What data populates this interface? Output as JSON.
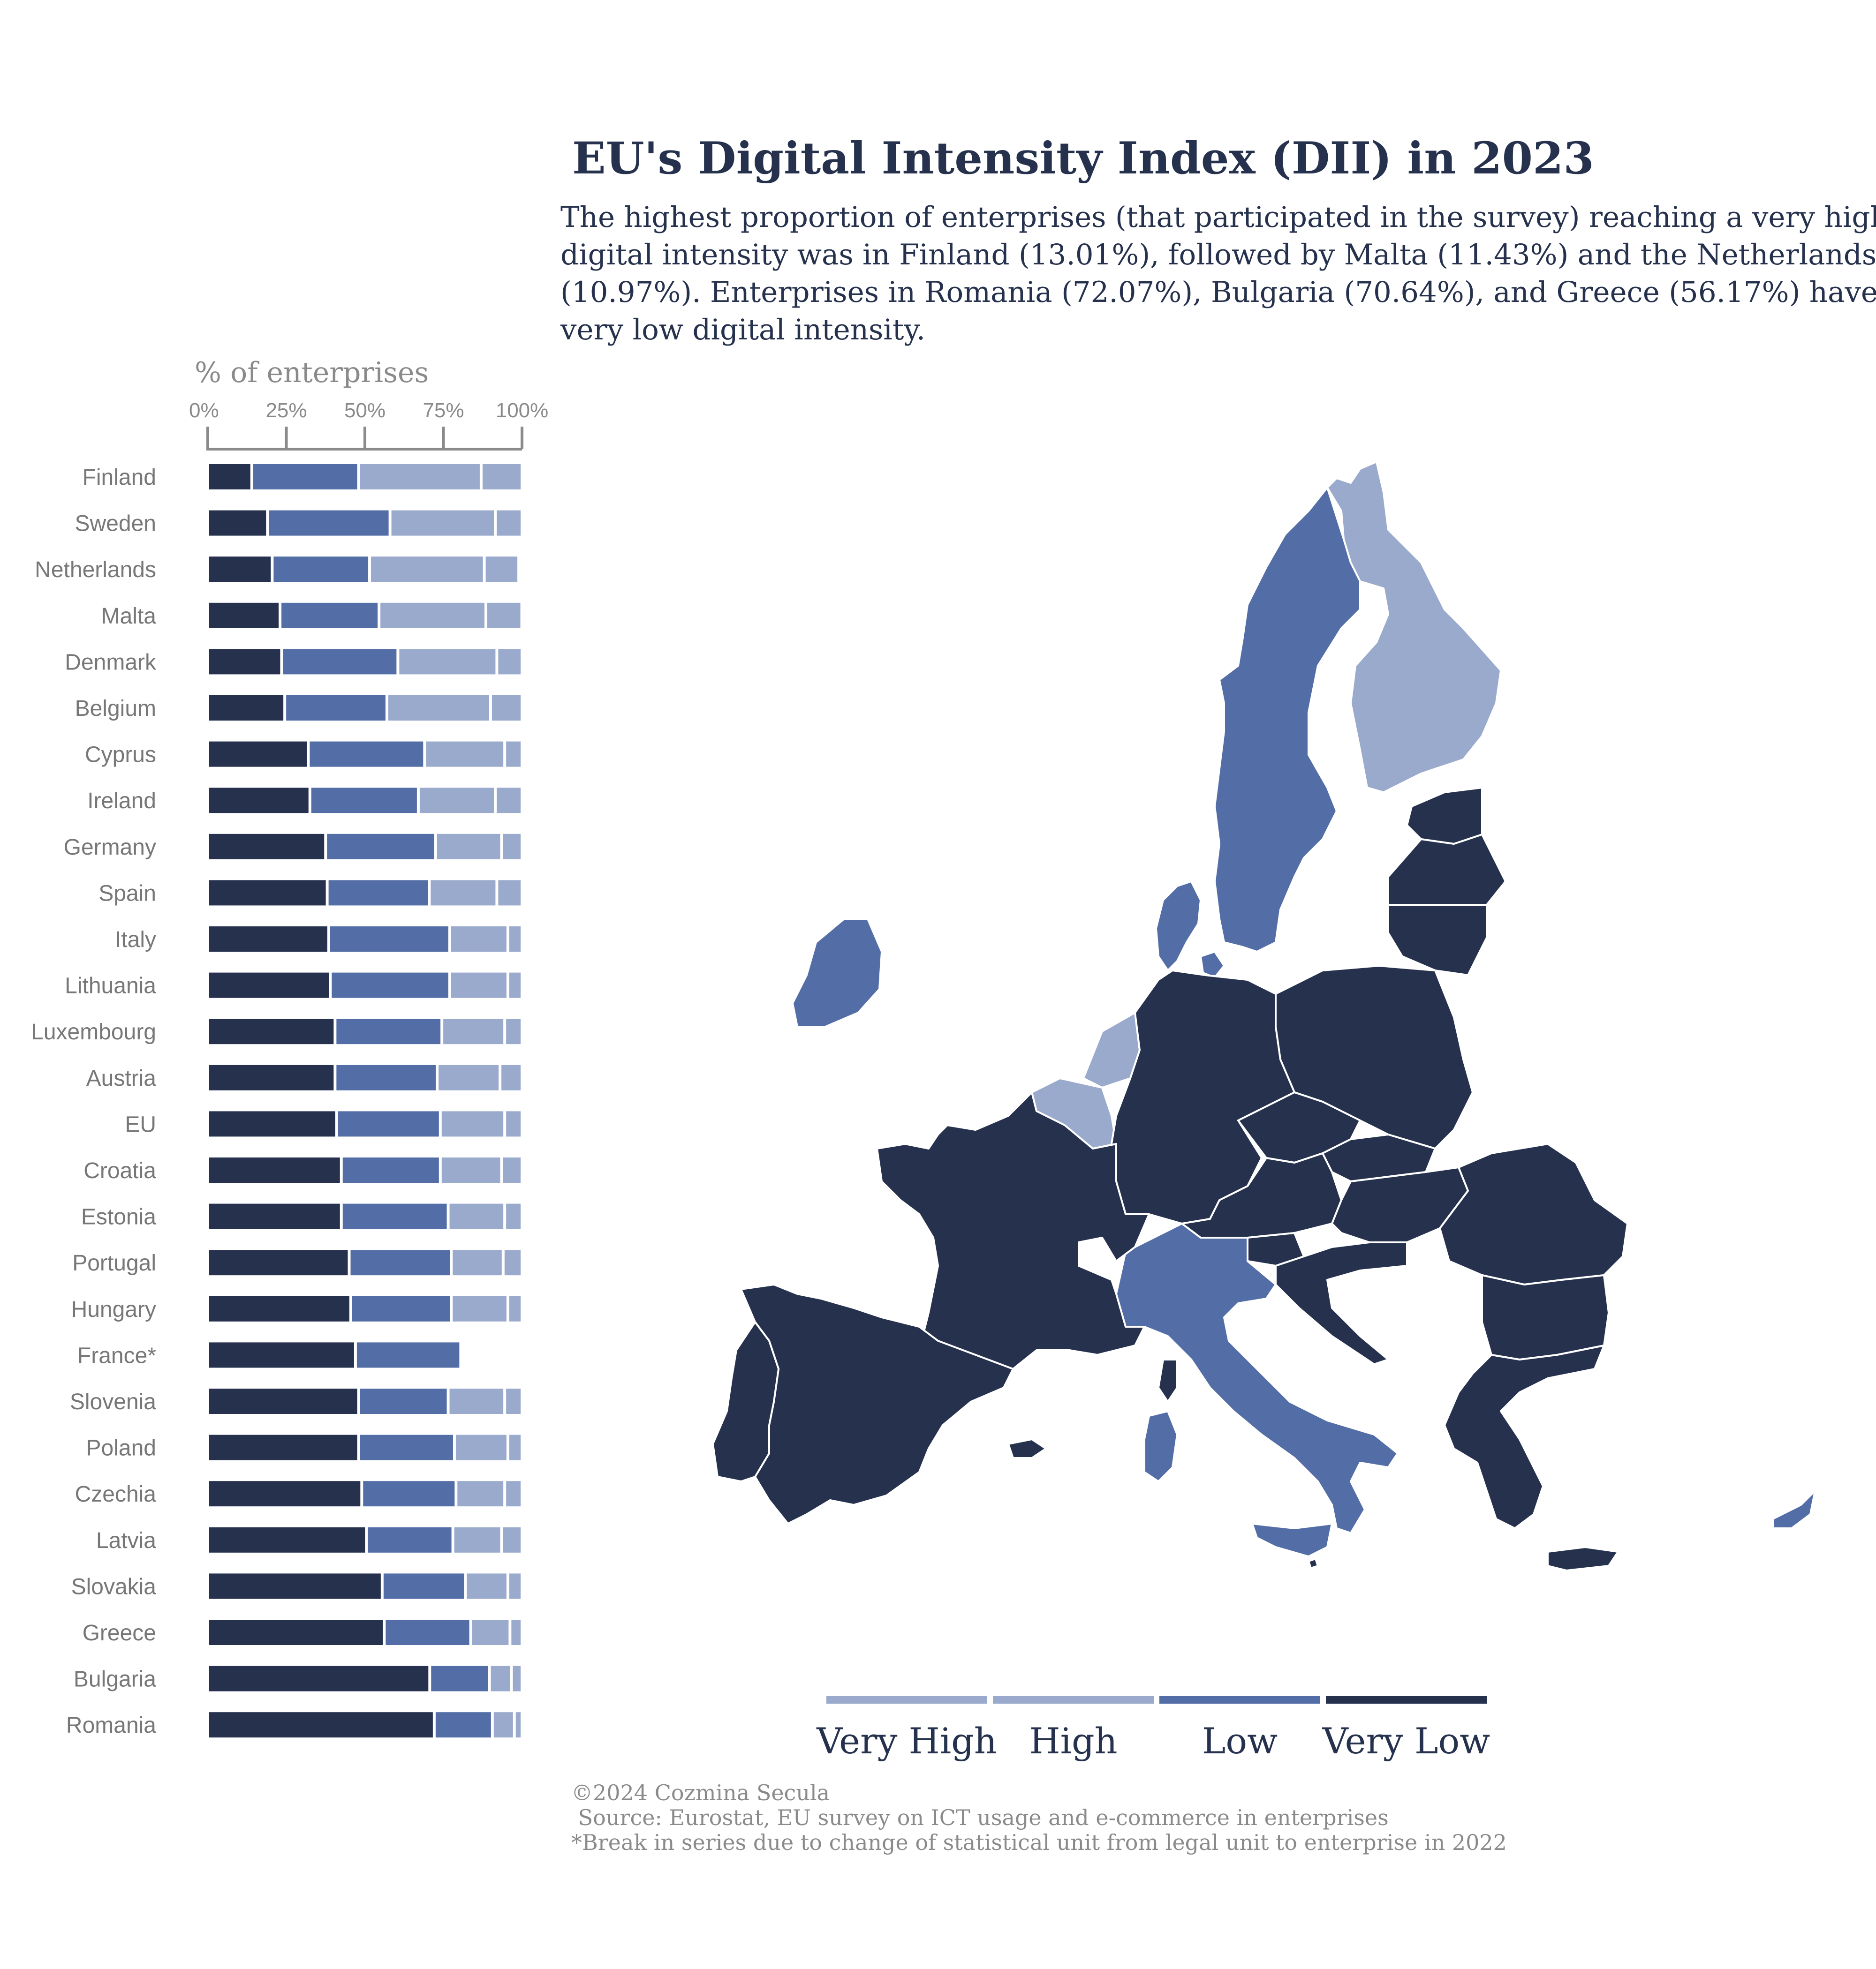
{
  "title": "EU's Digital Intensity Index (DII) in 2023",
  "subtitle_lines": [
    "The highest proportion of enterprises (that participated in the survey) reaching a very high",
    "digital intensity was in Finland (13.01%), followed by Malta (11.43%) and the Netherlands",
    "(10.97%). Enterprises in Romania (72.07%), Bulgaria (70.64%), and Greece (56.17%) have",
    "very low digital intensity."
  ],
  "footer_lines": [
    "©2024 Cozmina Secula",
    " Source: Eurostat, EU survey on ICT usage and e-commerce in enterprises",
    "*Break in series due to change of statistical unit from legal unit to enterprise in 2022"
  ],
  "colors": {
    "very_low": "#25314d",
    "low": "#536da6",
    "high": "#9aaacc",
    "very_high": "#9aaacc",
    "text": "#25314d",
    "muted": "#8a8a8a",
    "label": "#777777"
  },
  "legend": {
    "items": [
      {
        "label": "Very High",
        "color": "#9aaacc"
      },
      {
        "label": "High",
        "color": "#9aaacc"
      },
      {
        "label": "Low",
        "color": "#536da6"
      },
      {
        "label": "Very Low",
        "color": "#25314d"
      }
    ]
  },
  "chart_data": [
    {
      "type": "bar",
      "orientation": "horizontal",
      "stacked": true,
      "xlabel": "% of enterprises",
      "xlim": [
        0,
        100
      ],
      "xticks": [
        "0%",
        "25%",
        "50%",
        "75%",
        "100%"
      ],
      "categories": [
        "Finland",
        "Sweden",
        "Netherlands",
        "Malta",
        "Denmark",
        "Belgium",
        "Cyprus",
        "Ireland",
        "Germany",
        "Spain",
        "Italy",
        "Lithuania",
        "Luxembourg",
        "Austria",
        "EU",
        "Croatia",
        "Estonia",
        "Portugal",
        "Hungary",
        "France*",
        "Slovenia",
        "Poland",
        "Czechia",
        "Latvia",
        "Slovakia",
        "Greece",
        "Bulgaria",
        "Romania"
      ],
      "series": [
        {
          "name": "Very Low",
          "values": [
            14,
            19,
            20.5,
            23,
            23.5,
            24.5,
            32,
            32.5,
            37.5,
            38,
            38.5,
            39,
            40.5,
            40.5,
            41,
            42.5,
            42.5,
            45,
            45.5,
            47,
            48,
            48,
            49,
            50.5,
            55.5,
            56.17,
            70.64,
            72.07
          ]
        },
        {
          "name": "Low",
          "values": [
            34,
            39,
            31,
            31.5,
            37,
            32.5,
            37,
            34.5,
            35,
            32.5,
            38.5,
            38,
            34,
            32.5,
            33,
            31.5,
            34,
            32.5,
            32,
            33.5,
            28.5,
            30.5,
            30,
            27.5,
            26.5,
            27.5,
            19,
            18.5
          ]
        },
        {
          "name": "High",
          "values": [
            39,
            33.5,
            36.5,
            34,
            31.5,
            33,
            25.5,
            24.5,
            21,
            21.5,
            18.5,
            18.5,
            20,
            20,
            20.5,
            19.5,
            18,
            16.5,
            18,
            0,
            18,
            17,
            15.5,
            15.5,
            13.5,
            12.5,
            7,
            7
          ]
        },
        {
          "name": "Very High",
          "values": [
            13.01,
            8.5,
            10.97,
            11.43,
            8,
            10,
            5.5,
            8.5,
            6.5,
            8,
            4.5,
            4.5,
            5.5,
            7,
            5.5,
            6.5,
            5.5,
            6,
            4.5,
            0,
            5.5,
            4.5,
            5.5,
            6.5,
            4.5,
            3.83,
            3.36,
            2.43
          ]
        }
      ]
    },
    {
      "type": "map",
      "title": "",
      "category_by_country": {
        "Finland": "Very High",
        "Netherlands": "Very High",
        "Belgium": "Very High",
        "Sweden": "Low",
        "Denmark": "Low",
        "Ireland": "Low",
        "Italy": "Low",
        "Cyprus": "Low",
        "Estonia": "Very Low",
        "Latvia": "Very Low",
        "Lithuania": "Very Low",
        "Poland": "Very Low",
        "Germany": "Very Low",
        "France": "Very Low",
        "Spain": "Very Low",
        "Portugal": "Very Low",
        "Luxembourg": "Very Low",
        "Austria": "Very Low",
        "Czechia": "Very Low",
        "Slovakia": "Very Low",
        "Hungary": "Very Low",
        "Slovenia": "Very Low",
        "Croatia": "Very Low",
        "Romania": "Very Low",
        "Bulgaria": "Very Low",
        "Greece": "Very Low",
        "Malta": "Very Low"
      }
    }
  ]
}
